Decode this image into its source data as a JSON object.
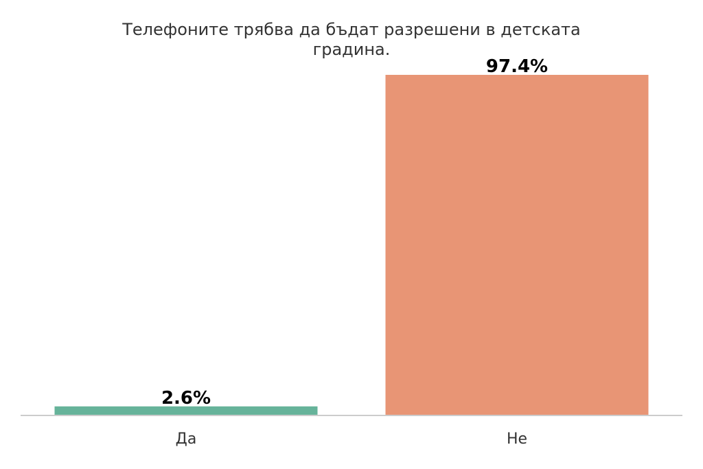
{
  "chart_data": {
    "type": "bar",
    "title_lines": [
      "Телефоните трябва да бъдат разрешени в детската",
      "градина."
    ],
    "categories": [
      "Да",
      "Не"
    ],
    "values": [
      2.6,
      97.4
    ],
    "value_labels": [
      "2.6%",
      "97.4%"
    ],
    "colors": [
      "#66b39a",
      "#e89575"
    ],
    "ylim": [
      0,
      97.4
    ],
    "grid": false,
    "legend": "none"
  }
}
